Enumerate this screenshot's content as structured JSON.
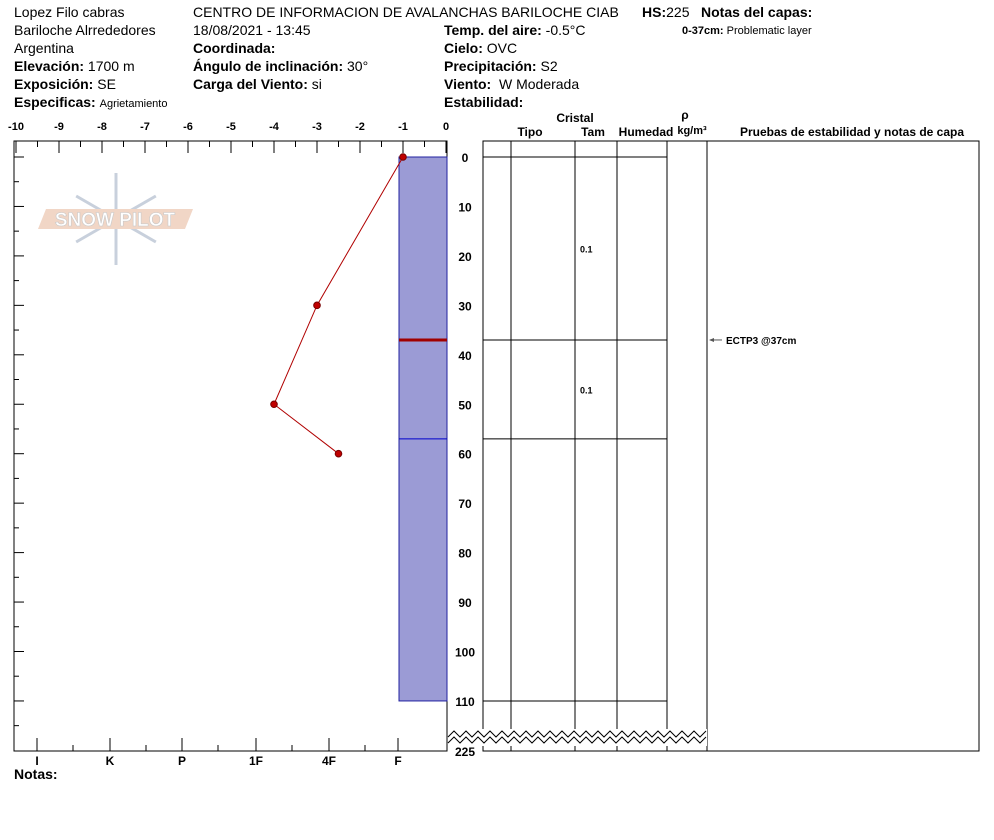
{
  "header": {
    "observer": "Lopez Filo cabras",
    "location": "Bariloche Alrrededores",
    "country": "Argentina",
    "elevation_label": "Elevación:",
    "elevation": "1700 m",
    "aspect_label": "Exposición:",
    "aspect": "SE",
    "specifics_label": "Especificas:",
    "specifics": "Agrietamiento",
    "organization": "CENTRO DE INFORMACION DE AVALANCHAS BARILOCHE CIAB",
    "datetime": "18/08/2021 - 13:45",
    "coord_label": "Coordinada:",
    "slope_label": "Ángulo de inclinación:",
    "slope": "30°",
    "windload_label": "Carga del Viento:",
    "windload": "si",
    "stability_label": "Estabilidad:",
    "air_temp_label": "Temp. del aire:",
    "air_temp": "-0.5°C",
    "sky_label": "Cielo:",
    "sky": "OVC",
    "precip_label": "Precipitación:",
    "precip": "S2",
    "wind_label": "Viento:",
    "wind": "W Moderada",
    "hs_label": "HS:",
    "hs": "225",
    "layer_notes_title": "Notas del capas:",
    "layer_notes_range": "0-37cm:",
    "layer_notes_text": "Problematic layer"
  },
  "table_headers": {
    "cristal": "Cristal",
    "tipo": "Tipo",
    "tam": "Tam",
    "humedad": "Humedad",
    "rho": "ρ",
    "density": "kg/m³",
    "tests": "Pruebas de estabilidad y notas de capa"
  },
  "chart_data": {
    "type": "line",
    "temp_ticks": [
      "-10",
      "-9",
      "-8",
      "-7",
      "-6",
      "-5",
      "-4",
      "-3",
      "-2",
      "-1",
      "0"
    ],
    "depth_ticks": [
      "0",
      "10",
      "20",
      "30",
      "40",
      "50",
      "60",
      "70",
      "80",
      "90",
      "100",
      "110"
    ],
    "depth_bottom": "225",
    "hardness_labels": [
      "I",
      "K",
      "P",
      "1F",
      "4F",
      "F"
    ],
    "temperature_profile": [
      {
        "depth": 0,
        "temp": -1
      },
      {
        "depth": 30,
        "temp": -3
      },
      {
        "depth": 50,
        "temp": -4
      },
      {
        "depth": 60,
        "temp": -2.5
      }
    ],
    "hardness_layer": {
      "top": 0,
      "bottom": 110,
      "hardness": "F"
    },
    "problem_layer_depth": 37,
    "layer_boundary_depth": 57,
    "layers": [
      {
        "top": 0,
        "bottom": 37,
        "tam": "0.1"
      },
      {
        "top": 37,
        "bottom": 57,
        "tam": "0.1"
      },
      {
        "top": 57,
        "bottom": 110,
        "tam": ""
      }
    ],
    "test_result": "ECTP3 @37cm",
    "colors": {
      "hardness": "#9b9bd5",
      "temp": "#b00000",
      "problem": "#a00000",
      "boundary": "#0000cc"
    }
  },
  "footer": {
    "notes_label": "Notas:"
  },
  "logo": {
    "text": "SNOW PILOT"
  }
}
